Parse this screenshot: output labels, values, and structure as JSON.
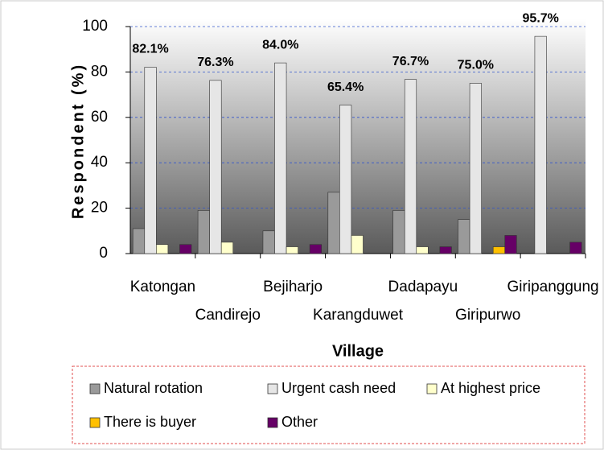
{
  "chart_data": {
    "type": "bar",
    "xlabel": "Village",
    "ylabel": "Respondent (%)",
    "categories": [
      "Katongan",
      "Candirejo",
      "Bejiharjo",
      "Karangduwet",
      "Dadapayu",
      "Giripurwo",
      "Giripanggung"
    ],
    "series": [
      {
        "name": "Natural rotation",
        "color": "#9a9a9a",
        "values": [
          11,
          19,
          10,
          27,
          19,
          15,
          0
        ]
      },
      {
        "name": "Urgent cash need",
        "color": "#e6e6e6",
        "values": [
          82.1,
          76.3,
          84.0,
          65.4,
          76.7,
          75.0,
          95.7
        ],
        "value_labels": [
          "82.1%",
          "76.3%",
          "84.0%",
          "65.4%",
          "76.7%",
          "75.0%",
          "95.7%"
        ]
      },
      {
        "name": "At highest price",
        "color": "#ffffcc",
        "values": [
          4,
          5,
          3,
          8,
          3,
          0,
          0
        ]
      },
      {
        "name": "There is buyer",
        "color": "#ffc000",
        "values": [
          0,
          0,
          0,
          0,
          0,
          3,
          0
        ]
      },
      {
        "name": "Other",
        "color": "#660066",
        "values": [
          4,
          0,
          4,
          0,
          3,
          8,
          5
        ]
      }
    ],
    "ylim": [
      0,
      100
    ],
    "yticks": [
      0,
      20,
      40,
      60,
      80,
      100
    ],
    "grid": true,
    "legend": "bottom"
  }
}
